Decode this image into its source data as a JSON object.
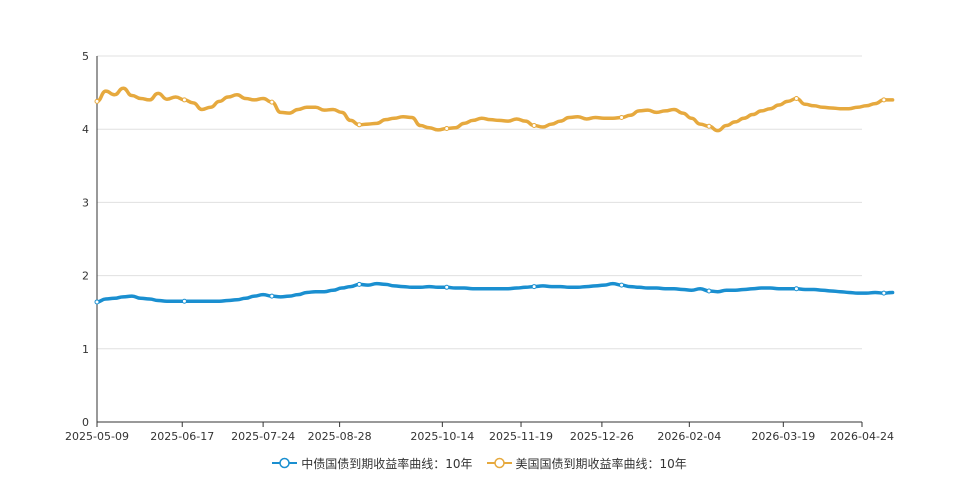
{
  "chart_data": {
    "type": "line",
    "title": "",
    "xlabel": "",
    "ylabel": "",
    "ylim": [
      0,
      5
    ],
    "yticks": [
      "0",
      "1",
      "2",
      "3",
      "4",
      "5"
    ],
    "grid": true,
    "legend_position": "bottom",
    "x_tick_labels": [
      "2025-05-09",
      "2025-06-17",
      "2025-07-24",
      "2025-08-28",
      "2025-10-14",
      "2025-11-19",
      "2025-12-26",
      "2026-02-04",
      "2026-03-19",
      "2026-04-24"
    ],
    "x": [
      "2025-05-09",
      "2025-05-13",
      "2025-05-17",
      "2025-05-21",
      "2025-05-25",
      "2025-05-29",
      "2025-06-02",
      "2025-06-06",
      "2025-06-10",
      "2025-06-14",
      "2025-06-18",
      "2025-06-22",
      "2025-06-26",
      "2025-06-30",
      "2025-07-04",
      "2025-07-08",
      "2025-07-12",
      "2025-07-16",
      "2025-07-20",
      "2025-07-24",
      "2025-07-28",
      "2025-08-01",
      "2025-08-05",
      "2025-08-09",
      "2025-08-13",
      "2025-08-17",
      "2025-08-21",
      "2025-08-25",
      "2025-08-29",
      "2025-09-02",
      "2025-09-06",
      "2025-09-10",
      "2025-09-14",
      "2025-09-18",
      "2025-09-22",
      "2025-09-26",
      "2025-09-30",
      "2025-10-04",
      "2025-10-08",
      "2025-10-12",
      "2025-10-16",
      "2025-10-20",
      "2025-10-24",
      "2025-10-28",
      "2025-11-01",
      "2025-11-05",
      "2025-11-09",
      "2025-11-13",
      "2025-11-17",
      "2025-11-21",
      "2025-11-25",
      "2025-11-29",
      "2025-12-03",
      "2025-12-07",
      "2025-12-11",
      "2025-12-15",
      "2025-12-19",
      "2025-12-23",
      "2025-12-27",
      "2025-12-31",
      "2026-01-04",
      "2026-01-08",
      "2026-01-12",
      "2026-01-16",
      "2026-01-20",
      "2026-01-24",
      "2026-01-28",
      "2026-02-01",
      "2026-02-05",
      "2026-02-09",
      "2026-02-13",
      "2026-02-17",
      "2026-02-21",
      "2026-02-25",
      "2026-03-01",
      "2026-03-05",
      "2026-03-09",
      "2026-03-13",
      "2026-03-17",
      "2026-03-21",
      "2026-03-25",
      "2026-03-29",
      "2026-04-02",
      "2026-04-06",
      "2026-04-10",
      "2026-04-14",
      "2026-04-18",
      "2026-04-22",
      "2026-04-26",
      "2026-04-30",
      "2026-05-04",
      "2026-05-08"
    ],
    "series": [
      {
        "name": "中债国债到期收益率曲线：10年",
        "color": "#1a8fd0",
        "marker": "circle",
        "values": [
          1.64,
          1.68,
          1.69,
          1.71,
          1.72,
          1.69,
          1.68,
          1.66,
          1.65,
          1.65,
          1.65,
          1.65,
          1.65,
          1.65,
          1.65,
          1.66,
          1.67,
          1.69,
          1.72,
          1.74,
          1.72,
          1.71,
          1.72,
          1.74,
          1.77,
          1.78,
          1.78,
          1.8,
          1.83,
          1.85,
          1.88,
          1.87,
          1.89,
          1.88,
          1.86,
          1.85,
          1.84,
          1.84,
          1.85,
          1.84,
          1.84,
          1.83,
          1.83,
          1.82,
          1.82,
          1.82,
          1.82,
          1.82,
          1.83,
          1.84,
          1.85,
          1.86,
          1.85,
          1.85,
          1.84,
          1.84,
          1.85,
          1.86,
          1.87,
          1.89,
          1.87,
          1.85,
          1.84,
          1.83,
          1.83,
          1.82,
          1.82,
          1.81,
          1.8,
          1.82,
          1.79,
          1.78,
          1.8,
          1.8,
          1.81,
          1.82,
          1.83,
          1.83,
          1.82,
          1.82,
          1.82,
          1.81,
          1.81,
          1.8,
          1.79,
          1.78,
          1.77,
          1.76,
          1.76,
          1.77,
          1.76,
          1.77
        ]
      },
      {
        "name": "美国国债到期收益率曲线：10年",
        "color": "#e6a93e",
        "marker": "circle",
        "values": [
          4.38,
          4.52,
          4.47,
          4.56,
          4.46,
          4.42,
          4.4,
          4.49,
          4.41,
          4.44,
          4.4,
          4.36,
          4.27,
          4.3,
          4.38,
          4.44,
          4.47,
          4.42,
          4.4,
          4.42,
          4.37,
          4.23,
          4.22,
          4.27,
          4.3,
          4.3,
          4.26,
          4.27,
          4.23,
          4.12,
          4.06,
          4.07,
          4.08,
          4.13,
          4.15,
          4.17,
          4.16,
          4.05,
          4.02,
          3.99,
          4.01,
          4.02,
          4.08,
          4.12,
          4.15,
          4.13,
          4.12,
          4.11,
          4.14,
          4.11,
          4.05,
          4.03,
          4.07,
          4.11,
          4.16,
          4.17,
          4.14,
          4.16,
          4.15,
          4.15,
          4.16,
          4.19,
          4.25,
          4.26,
          4.23,
          4.25,
          4.27,
          4.22,
          4.15,
          4.07,
          4.04,
          3.98,
          4.05,
          4.1,
          4.15,
          4.2,
          4.25,
          4.28,
          4.33,
          4.38,
          4.42,
          4.34,
          4.32,
          4.3,
          4.29,
          4.28,
          4.28,
          4.3,
          4.32,
          4.35,
          4.4,
          4.4
        ]
      }
    ]
  }
}
